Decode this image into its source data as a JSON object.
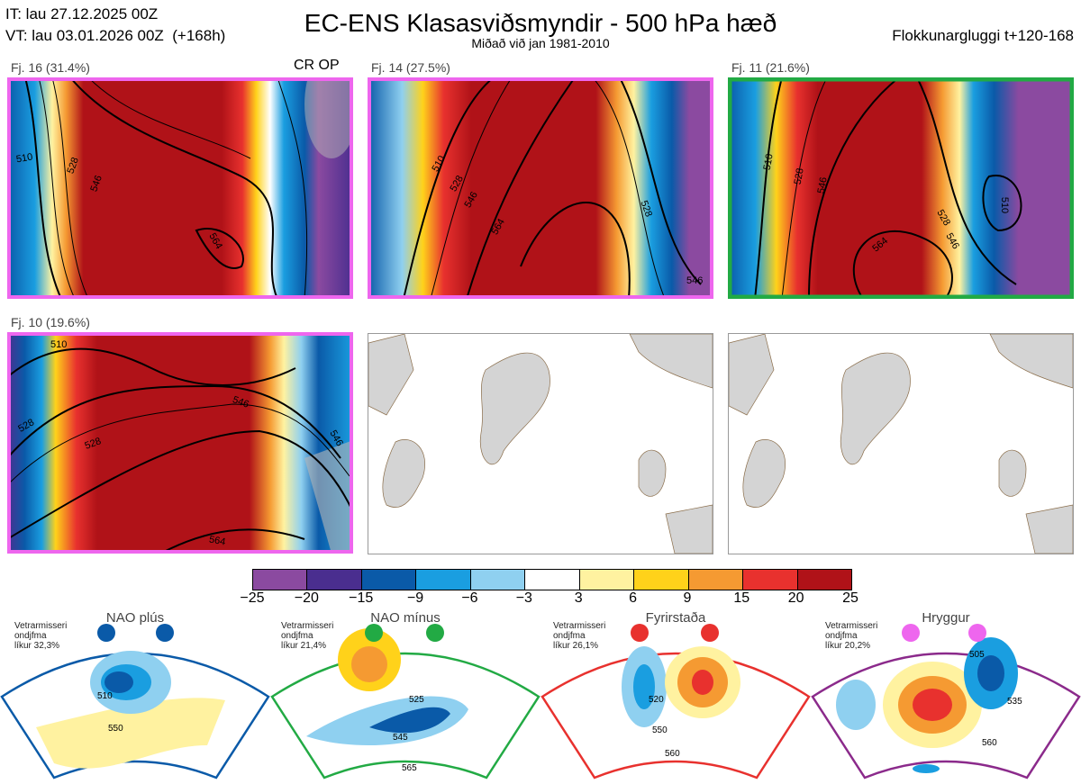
{
  "header": {
    "it": "IT: lau 27.12.2025 00Z",
    "vt": "VT: lau 03.01.2026 00Z  (+168h)",
    "title": "EC-ENS Klasasviðsmyndir - 500 hPa hæð",
    "subtitle": "Miðað við jan 1981-2010",
    "window": "Flokkunargluggi t+120-168"
  },
  "panels": [
    {
      "label": "Fj. 16 (31.4%)",
      "extra": "CR OP",
      "frame": "#ee66ee",
      "contours": [
        "510",
        "528",
        "546",
        "564"
      ]
    },
    {
      "label": "Fj. 14 (27.5%)",
      "frame": "#ee66ee",
      "contours": [
        "510",
        "528",
        "546",
        "564",
        "528",
        "546"
      ]
    },
    {
      "label": "Fj. 11 (21.6%)",
      "frame": "#22aa44",
      "contours": [
        "510",
        "528",
        "546",
        "564",
        "528",
        "546",
        "510"
      ]
    },
    {
      "label": "Fj. 10 (19.6%)",
      "frame": "#ee66ee",
      "contours": [
        "510",
        "528",
        "546",
        "546",
        "528",
        "564"
      ]
    }
  ],
  "colorbar": {
    "colors": [
      "#8b4aa0",
      "#4a2e8f",
      "#0a5aa8",
      "#1a9ee0",
      "#8fd0f0",
      "#ffffff",
      "#fff2a0",
      "#ffd21a",
      "#f59a32",
      "#e8312e",
      "#b01218"
    ],
    "ticks": [
      "−25",
      "−20",
      "−15",
      "−9",
      "−6",
      "−3",
      "3",
      "6",
      "9",
      "15",
      "20",
      "25"
    ]
  },
  "regimes": [
    {
      "name": "NAO plús",
      "line1": "Vetrarmisseri",
      "line2": "ondjfma",
      "line3": "líkur 32,3%",
      "color": "#0a5aa8",
      "contours": [
        "510",
        "550"
      ]
    },
    {
      "name": "NAO mínus",
      "line1": "Vetrarmisseri",
      "line2": "ondjfma",
      "line3": "líkur 21,4%",
      "color": "#22aa44",
      "contours": [
        "525",
        "545",
        "565"
      ]
    },
    {
      "name": "Fyrirstaða",
      "line1": "Vetrarmisseri",
      "line2": "ondjfma",
      "line3": "líkur 26,1%",
      "color": "#e8312e",
      "contours": [
        "520",
        "550",
        "560"
      ]
    },
    {
      "name": "Hryggur",
      "line1": "Vetrarmisseri",
      "line2": "ondjfma",
      "line3": "líkur 20,2%",
      "color": "#ee66ee",
      "contours": [
        "505",
        "535",
        "560"
      ]
    }
  ]
}
